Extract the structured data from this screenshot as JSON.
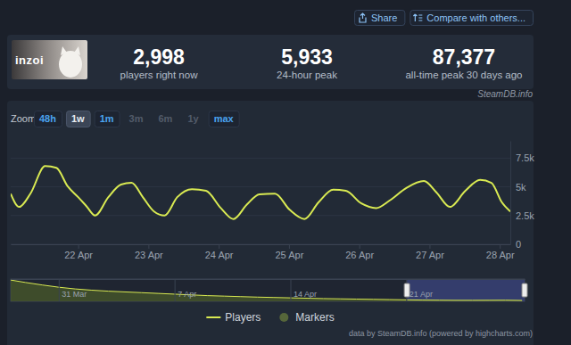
{
  "toolbar": {
    "share": "Share",
    "compare": "Compare with others..."
  },
  "header": {
    "game_logo": "inzoi",
    "stats": [
      {
        "value": "2,998",
        "label": "players right now"
      },
      {
        "value": "5,933",
        "label": "24-hour peak"
      },
      {
        "value": "87,377",
        "label": "all-time peak 30 days ago"
      }
    ],
    "source": "SteamDB.info"
  },
  "zoom": {
    "label": "Zoom",
    "buttons": [
      "48h",
      "1w",
      "1m",
      "3m",
      "6m",
      "1y",
      "max"
    ],
    "active": "1w",
    "disabled": [
      "3m",
      "6m",
      "1y"
    ]
  },
  "chart_data": [
    {
      "type": "line",
      "x": [
        21.04,
        21.16,
        21.32,
        21.53,
        21.69,
        21.85,
        22.0,
        22.12,
        22.24,
        22.43,
        22.61,
        22.76,
        22.92,
        23.08,
        23.23,
        23.41,
        23.62,
        23.82,
        24.03,
        24.21,
        24.4,
        24.58,
        24.8,
        25.01,
        25.22,
        25.42,
        25.63,
        25.81,
        26.03,
        26.24,
        26.43,
        26.67,
        26.92,
        27.1,
        27.29,
        27.51,
        27.72,
        27.88,
        28.03,
        28.15
      ],
      "series": [
        {
          "name": "Players",
          "color": "#d9ea52",
          "values": [
            4400,
            3250,
            4400,
            6800,
            6650,
            5050,
            4100,
            3300,
            2500,
            4100,
            5200,
            5350,
            4100,
            2850,
            2500,
            4100,
            4800,
            4650,
            3150,
            2200,
            3450,
            4350,
            4400,
            3000,
            2200,
            3650,
            4750,
            4650,
            3550,
            3150,
            3800,
            4900,
            5500,
            4500,
            3250,
            4650,
            5600,
            5350,
            3650,
            2850
          ]
        },
        {
          "name": "Markers",
          "type": "scatter",
          "marker": "circle",
          "color": "#56663a",
          "values": [
            null,
            null,
            null,
            null,
            null,
            null,
            null,
            null,
            null,
            null,
            null,
            null,
            null,
            null,
            null,
            null,
            null,
            null,
            null,
            null,
            null,
            null,
            null,
            null,
            null,
            null,
            null,
            null,
            null,
            null,
            null,
            null,
            null,
            null,
            null,
            null,
            null,
            null,
            null,
            null
          ]
        }
      ],
      "xlim": [
        21.04,
        28.15
      ],
      "xticks": [
        {
          "value": 22,
          "label": "22 Apr"
        },
        {
          "value": 23,
          "label": "23 Apr"
        },
        {
          "value": 24,
          "label": "24 Apr"
        },
        {
          "value": 25,
          "label": "25 Apr"
        },
        {
          "value": 26,
          "label": "26 Apr"
        },
        {
          "value": 27,
          "label": "27 Apr"
        },
        {
          "value": 28,
          "label": "28 Apr"
        }
      ],
      "ylim": [
        0,
        9000
      ],
      "yticks": [
        0,
        {
          "value": 2500,
          "label": "2.5k"
        },
        {
          "value": 5000,
          "label": "5k"
        },
        {
          "value": 7500,
          "label": "7.5k"
        }
      ],
      "grid": true,
      "legend": "bottom"
    },
    {
      "type": "area",
      "x": [
        -2.9,
        -2,
        -1,
        0,
        1,
        2,
        3,
        4,
        5,
        6,
        7,
        8,
        9,
        10,
        11,
        12,
        13,
        14,
        15,
        16,
        17,
        18,
        19,
        20,
        21,
        22,
        23,
        24,
        25,
        26,
        27,
        28
      ],
      "values": [
        86000,
        76000,
        66000,
        57000,
        50000,
        45000,
        41000,
        38000,
        35000,
        32000,
        29000,
        26000,
        23000,
        21000,
        19000,
        17000,
        15500,
        14000,
        12500,
        11000,
        10000,
        9000,
        8000,
        7000,
        6000,
        5000,
        4500,
        4000,
        4000,
        4200,
        4500,
        3500
      ],
      "color": "#d9ea52",
      "xlim": [
        -2.9,
        28.15
      ],
      "xticks": [
        {
          "value": 0,
          "label": "31 Mar"
        },
        {
          "value": 7,
          "label": "7 Apr"
        },
        {
          "value": 14,
          "label": "14 Apr"
        },
        {
          "value": 21,
          "label": "21 Apr"
        }
      ],
      "ylim": [
        0,
        90000
      ],
      "tick_labels": "x"
    }
  ],
  "credit": "data by SteamDB.info (powered by highcharts.com)"
}
